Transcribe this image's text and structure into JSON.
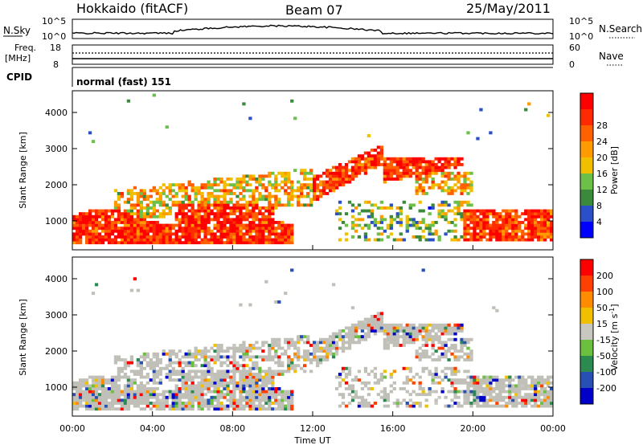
{
  "header": {
    "radar": "Hokkaido (fitACF)",
    "beam": "Beam 07",
    "date": "25/May/2011"
  },
  "strips": {
    "nsky": {
      "label": "N.Sky",
      "ticks": [
        "10^5",
        "10^0"
      ],
      "right_label": "N.Search",
      "right_ticks": [
        "10^5",
        "10^0"
      ]
    },
    "freq": {
      "label_top": "Freq.",
      "label_bottom": "[MHz]",
      "ticks": [
        "18",
        "8"
      ],
      "right_label": "Nave",
      "right_ticks": [
        "60",
        "0"
      ]
    },
    "cpid": {
      "label": "CPID",
      "text": "normal (fast) 151"
    }
  },
  "chart_data": [
    {
      "type": "heatmap",
      "name": "power",
      "ylabel": "Slant Range [km]",
      "ylim": [
        200,
        4600
      ],
      "yticks": [
        1000,
        2000,
        3000,
        4000
      ],
      "xlim": [
        0,
        24
      ],
      "colorbar": {
        "label": "Power [dB]",
        "ticks": [
          "4",
          "8",
          "12",
          "16",
          "20",
          "24",
          "28"
        ],
        "colors": [
          "#0000ff",
          "#2a4fc8",
          "#3b8a3b",
          "#6cbf47",
          "#f0c000",
          "#ff9a00",
          "#ff6000",
          "#ff2a00",
          "#ff0000"
        ]
      }
    },
    {
      "type": "heatmap",
      "name": "velocity",
      "ylabel": "Slant Range [km]",
      "ylim": [
        200,
        4600
      ],
      "yticks": [
        1000,
        2000,
        3000,
        4000
      ],
      "xlim": [
        0,
        24
      ],
      "colorbar": {
        "label": "Velocity [m s",
        "label_sup": "-1",
        "label_end": "]",
        "ticks": [
          "200",
          "100",
          "50",
          "15",
          "-15",
          "-50",
          "-100",
          "-200"
        ],
        "colors": [
          "#0000c8",
          "#2850b4",
          "#2a8a50",
          "#6cc040",
          "#c8c8c0",
          "#f0c000",
          "#ff8c00",
          "#ff4000",
          "#ff0000"
        ]
      }
    }
  ],
  "xaxis": {
    "ticks": [
      "00:00",
      "04:00",
      "08:00",
      "12:00",
      "16:00",
      "20:00",
      "00:00"
    ],
    "label": "Time UT"
  },
  "colors": {
    "ground_scatter": "#c0c0b8",
    "axis": "#000000"
  }
}
